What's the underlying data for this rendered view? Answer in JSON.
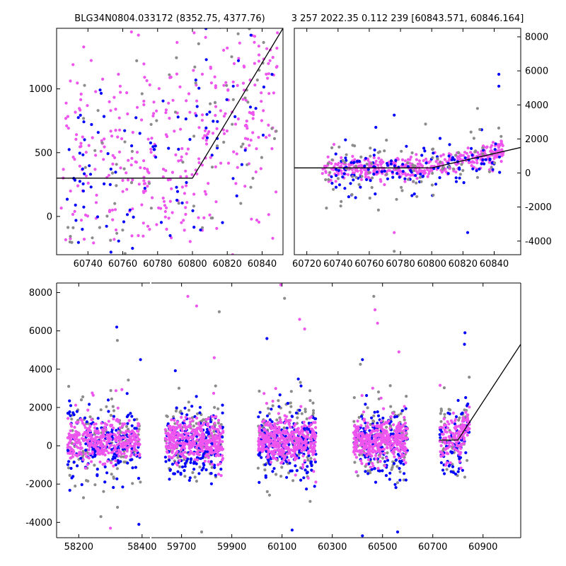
{
  "titles": {
    "left": "BLG34N0804.033172 (8352.75, 4377.76)",
    "right": "3 257 2022.35 0.112 239 [60843.571, 60846.164]"
  },
  "colors": {
    "series_gray": "#8c8c8c",
    "series_blue": "#0000ff",
    "series_magenta": "#ee55ee",
    "model_line": "#000000"
  },
  "chart_data": [
    {
      "id": "zoom-left",
      "type": "scatter",
      "xlim": [
        60722,
        60852
      ],
      "ylim": [
        -300,
        1475
      ],
      "xticks": [
        60740,
        60760,
        60780,
        60800,
        60820,
        60840
      ],
      "yticks": [
        0,
        500,
        1000
      ],
      "ytick_side": "left",
      "model_line": [
        [
          60722,
          300
        ],
        [
          60800,
          300
        ],
        [
          60852,
          1475
        ]
      ],
      "series": [
        {
          "color_key": "series_magenta",
          "seed": 11,
          "n": 380,
          "x_range": [
            60724,
            60849
          ],
          "base": 450,
          "trend_from": 60795,
          "slope": 11,
          "spread": 420
        },
        {
          "color_key": "series_blue",
          "seed": 23,
          "n": 110,
          "x_range": [
            60728,
            60849
          ],
          "base": 350,
          "trend_from": 60800,
          "slope": 14,
          "spread": 420
        },
        {
          "color_key": "series_gray",
          "seed": 37,
          "n": 80,
          "x_range": [
            60726,
            60849
          ],
          "base": 350,
          "trend_from": 60800,
          "slope": 12,
          "spread": 420
        }
      ]
    },
    {
      "id": "zoom-right",
      "type": "scatter",
      "xlim": [
        60712,
        60857
      ],
      "ylim": [
        -4800,
        8500
      ],
      "xticks": [
        60720,
        60740,
        60760,
        60780,
        60800,
        60820,
        60840
      ],
      "yticks": [
        -4000,
        -2000,
        0,
        2000,
        4000,
        6000,
        8000
      ],
      "ytick_side": "right",
      "model_line": [
        [
          60712,
          300
        ],
        [
          60800,
          300
        ],
        [
          60857,
          1500
        ]
      ],
      "series": [
        {
          "color_key": "series_magenta",
          "seed": 41,
          "n": 420,
          "x_range": [
            60730,
            60846
          ],
          "base": 250,
          "trend_from": 60798,
          "slope": 22,
          "spread": 320
        },
        {
          "color_key": "series_blue",
          "seed": 53,
          "n": 130,
          "x_range": [
            60735,
            60846
          ],
          "base": 150,
          "trend_from": 60800,
          "slope": 24,
          "spread": 700
        },
        {
          "color_key": "series_gray",
          "seed": 67,
          "n": 90,
          "x_range": [
            60732,
            60846
          ],
          "base": 150,
          "trend_from": 60800,
          "slope": 20,
          "spread": 900
        }
      ],
      "highlights": [
        {
          "x": 60843,
          "y": 5800,
          "color_key": "series_blue"
        },
        {
          "x": 60843,
          "y": 5100,
          "color_key": "series_blue"
        },
        {
          "x": 60776,
          "y": 3400,
          "color_key": "series_blue"
        },
        {
          "x": 60776,
          "y": -3500,
          "color_key": "series_magenta"
        },
        {
          "x": 60823,
          "y": -3500,
          "color_key": "series_blue"
        },
        {
          "x": 60776,
          "y": -4600,
          "color_key": "series_gray"
        }
      ]
    },
    {
      "id": "full-season",
      "type": "scatter",
      "ylim": [
        -4800,
        8500
      ],
      "yticks": [
        -4000,
        -2000,
        0,
        2000,
        4000,
        6000,
        8000
      ],
      "ytick_side": "left",
      "segments": [
        {
          "xlim": [
            58130,
            58425
          ],
          "xticks": [
            58200,
            58400
          ]
        },
        {
          "xlim": [
            59580,
            61050
          ],
          "xticks": [
            59700,
            59900,
            60100,
            60300,
            60500,
            60700,
            60900
          ]
        }
      ],
      "seasons": [
        {
          "segment": 0,
          "x_range": [
            58165,
            58395
          ],
          "seed": 101,
          "n": 650
        },
        {
          "segment": 1,
          "x_range": [
            59635,
            59865
          ],
          "seed": 211,
          "n": 700
        },
        {
          "segment": 1,
          "x_range": [
            60005,
            60235
          ],
          "seed": 307,
          "n": 720
        },
        {
          "segment": 1,
          "x_range": [
            60385,
            60600
          ],
          "seed": 401,
          "n": 650
        },
        {
          "segment": 1,
          "x_range": [
            60728,
            60846
          ],
          "seed": 503,
          "n": 260,
          "trend_from": 60800,
          "slope": 22
        }
      ],
      "model_line": [
        [
          60725,
          300
        ],
        [
          60800,
          300
        ],
        [
          61050,
          5300
        ]
      ],
      "outliers": [
        {
          "x": 58320,
          "y": 6200,
          "color_key": "series_blue"
        },
        {
          "x": 58322,
          "y": 5500,
          "color_key": "series_gray"
        },
        {
          "x": 58395,
          "y": 4500,
          "color_key": "series_blue"
        },
        {
          "x": 59725,
          "y": 7800,
          "color_key": "series_magenta"
        },
        {
          "x": 59760,
          "y": 7300,
          "color_key": "series_magenta"
        },
        {
          "x": 59850,
          "y": 7000,
          "color_key": "series_gray"
        },
        {
          "x": 59830,
          "y": 4600,
          "color_key": "series_magenta"
        },
        {
          "x": 60095,
          "y": 8400,
          "color_key": "series_magenta"
        },
        {
          "x": 60110,
          "y": 7700,
          "color_key": "series_gray"
        },
        {
          "x": 60040,
          "y": 5600,
          "color_key": "series_blue"
        },
        {
          "x": 60170,
          "y": 6600,
          "color_key": "series_magenta"
        },
        {
          "x": 60190,
          "y": 6100,
          "color_key": "series_magenta"
        },
        {
          "x": 60465,
          "y": 7800,
          "color_key": "series_gray"
        },
        {
          "x": 60470,
          "y": 7100,
          "color_key": "series_magenta"
        },
        {
          "x": 60480,
          "y": 6400,
          "color_key": "series_magenta"
        },
        {
          "x": 60420,
          "y": 4500,
          "color_key": "series_blue"
        },
        {
          "x": 60565,
          "y": 4900,
          "color_key": "series_magenta"
        },
        {
          "x": 60828,
          "y": 5900,
          "color_key": "series_blue"
        },
        {
          "x": 60826,
          "y": 5300,
          "color_key": "series_blue"
        },
        {
          "x": 58270,
          "y": -3700,
          "color_key": "series_gray"
        },
        {
          "x": 58300,
          "y": -4300,
          "color_key": "series_magenta"
        },
        {
          "x": 58390,
          "y": -4100,
          "color_key": "series_blue"
        },
        {
          "x": 59780,
          "y": -4500,
          "color_key": "series_gray"
        },
        {
          "x": 60140,
          "y": -4400,
          "color_key": "series_blue"
        },
        {
          "x": 60420,
          "y": -4700,
          "color_key": "series_blue"
        },
        {
          "x": 60560,
          "y": -4500,
          "color_key": "series_blue"
        }
      ]
    }
  ]
}
